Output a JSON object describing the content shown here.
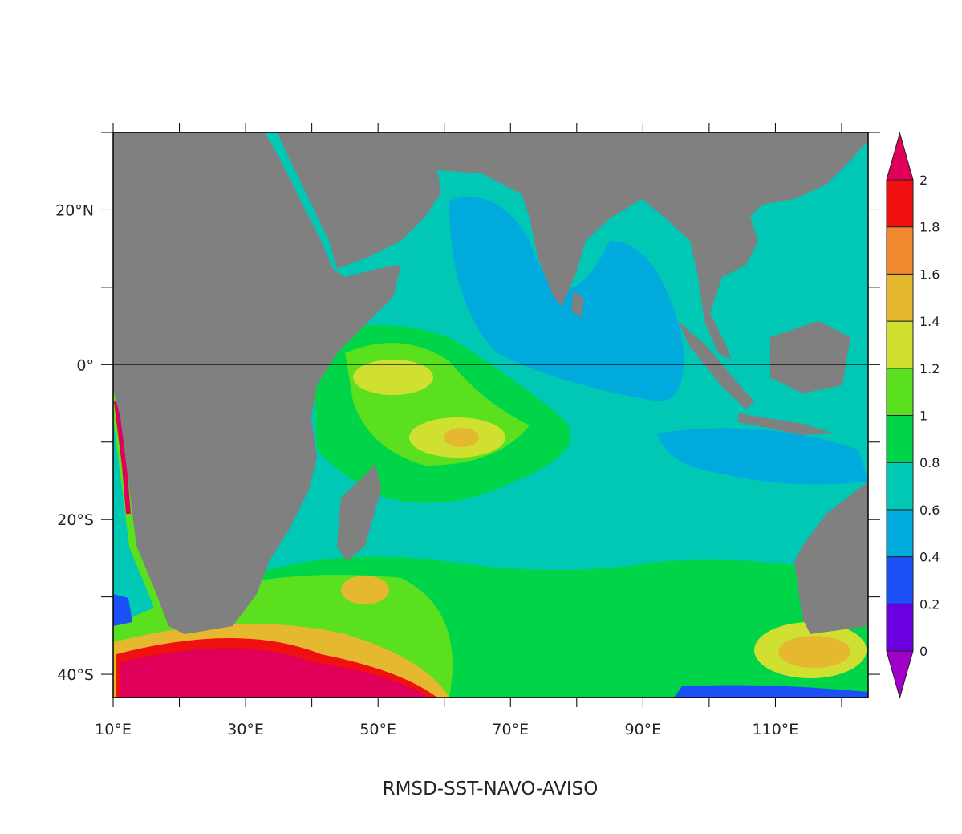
{
  "title": "RMSD-SST-NAVO-AVISO",
  "map": {
    "lon_range": [
      10,
      124
    ],
    "lat_range": [
      -43,
      30
    ],
    "land_color": "#808080",
    "x_ticks": [
      {
        "lon": 10,
        "label": "10°E"
      },
      {
        "lon": 30,
        "label": "30°E"
      },
      {
        "lon": 50,
        "label": "50°E"
      },
      {
        "lon": 70,
        "label": "70°E"
      },
      {
        "lon": 90,
        "label": "90°E"
      },
      {
        "lon": 110,
        "label": "110°E"
      }
    ],
    "x_minor_ticks": [
      20,
      40,
      60,
      80,
      100,
      120
    ],
    "y_ticks": [
      {
        "lat": 20,
        "label": "20°N"
      },
      {
        "lat": 0,
        "label": "0°"
      },
      {
        "lat": -20,
        "label": "20°S"
      },
      {
        "lat": -40,
        "label": "40°S"
      }
    ],
    "y_minor_ticks": [
      30,
      10,
      -10,
      -30
    ],
    "equator_line": true
  },
  "colorbar": {
    "labels": [
      "0",
      "0.2",
      "0.4",
      "0.6",
      "0.8",
      "1",
      "1.2",
      "1.4",
      "1.6",
      "1.8",
      "2"
    ],
    "colors": [
      "#6a00e0",
      "#1a50f5",
      "#00aadc",
      "#00c8b4",
      "#00d448",
      "#5ae01e",
      "#d0e030",
      "#e6b830",
      "#f08830",
      "#f01010"
    ],
    "under_color": "#a000c8",
    "over_color": "#e0005a"
  }
}
